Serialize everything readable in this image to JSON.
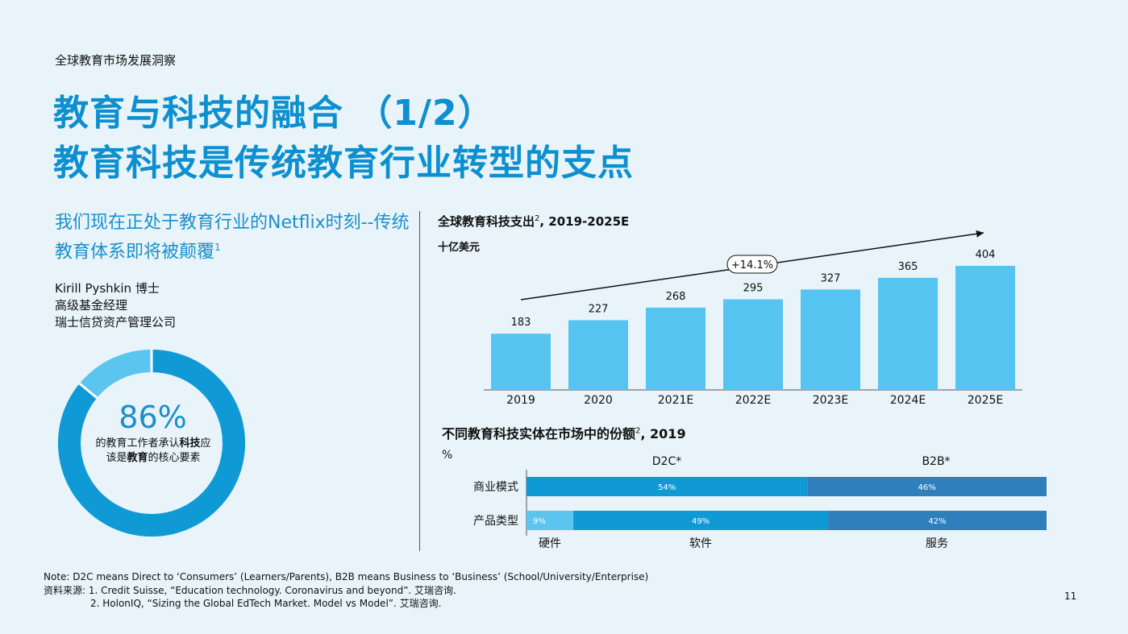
{
  "header": {
    "section": "全球教育市场发展洞察",
    "title_line1": "教育与科技的融合 （1/2）",
    "title_line2": "教育科技是传统教育行业转型的支点"
  },
  "quote": {
    "text": "我们现在正处于教育行业的Netflix时刻--传统教育体系即将被颠覆",
    "sup": "1",
    "person_name": "Kirill Pyshkin 博士",
    "person_title": "高级基金经理",
    "person_company": "瑞士信贷资产管理公司"
  },
  "donut": {
    "percent_label": "86%",
    "caption_parts": [
      "的教育工作者承认",
      "科技",
      "应该是",
      "教育",
      "的核心要素"
    ],
    "value": 86,
    "colors": {
      "main": "#0f9ad6",
      "rest": "#5bc4ef"
    }
  },
  "chart1": {
    "title": "全球教育科技支出",
    "title_sup": "2",
    "title_suffix": ", 2019-2025E",
    "unit": "十亿美元",
    "cagr_label": "+14.1%"
  },
  "chart2": {
    "title": "不同教育科技实体在市场中的份额",
    "title_sup": "2",
    "title_suffix": ", 2019",
    "unit": "%"
  },
  "chart_data": [
    {
      "type": "bar",
      "categories": [
        "2019",
        "2020",
        "2021E",
        "2022E",
        "2023E",
        "2024E",
        "2025E"
      ],
      "values": [
        183,
        227,
        268,
        295,
        327,
        365,
        404
      ],
      "data_labels": [
        "183",
        "227",
        "268",
        "295",
        "327",
        "365",
        "404"
      ],
      "ylim": [
        0,
        404
      ],
      "color": "#56c4f1",
      "annotation": "+14.1%"
    },
    {
      "type": "bar",
      "orientation": "horizontal-stacked",
      "rows": [
        {
          "label": "商业模式",
          "segments": [
            {
              "label": "54%",
              "value": 54,
              "color": "#0f9ad6"
            },
            {
              "label": "46%",
              "value": 46,
              "color": "#2f7fbd"
            }
          ]
        },
        {
          "label": "产品类型",
          "segments": [
            {
              "label": "9%",
              "value": 9,
              "color": "#5bc4ef"
            },
            {
              "label": "49%",
              "value": 49,
              "color": "#0f9ad6"
            },
            {
              "label": "42%",
              "value": 42,
              "color": "#2f7fbd"
            }
          ]
        }
      ],
      "top_labels": [
        "D2C*",
        "B2B*"
      ],
      "bottom_labels": [
        "硬件",
        "软件",
        "服务"
      ]
    }
  ],
  "footnotes": {
    "note": "Note: D2C means Direct to ‘Consumers’ (Learners/Parents), B2B means Business to ‘Business’ (School/University/Enterprise)",
    "source1": "资料来源: 1. Credit Suisse, “Education technology. Coronavirus and beyond”. 艾瑞咨询.",
    "source2": "2. HolonIQ, “Sizing the Global EdTech Market. Model vs Model”. 艾瑞咨询."
  },
  "page_number": "11"
}
